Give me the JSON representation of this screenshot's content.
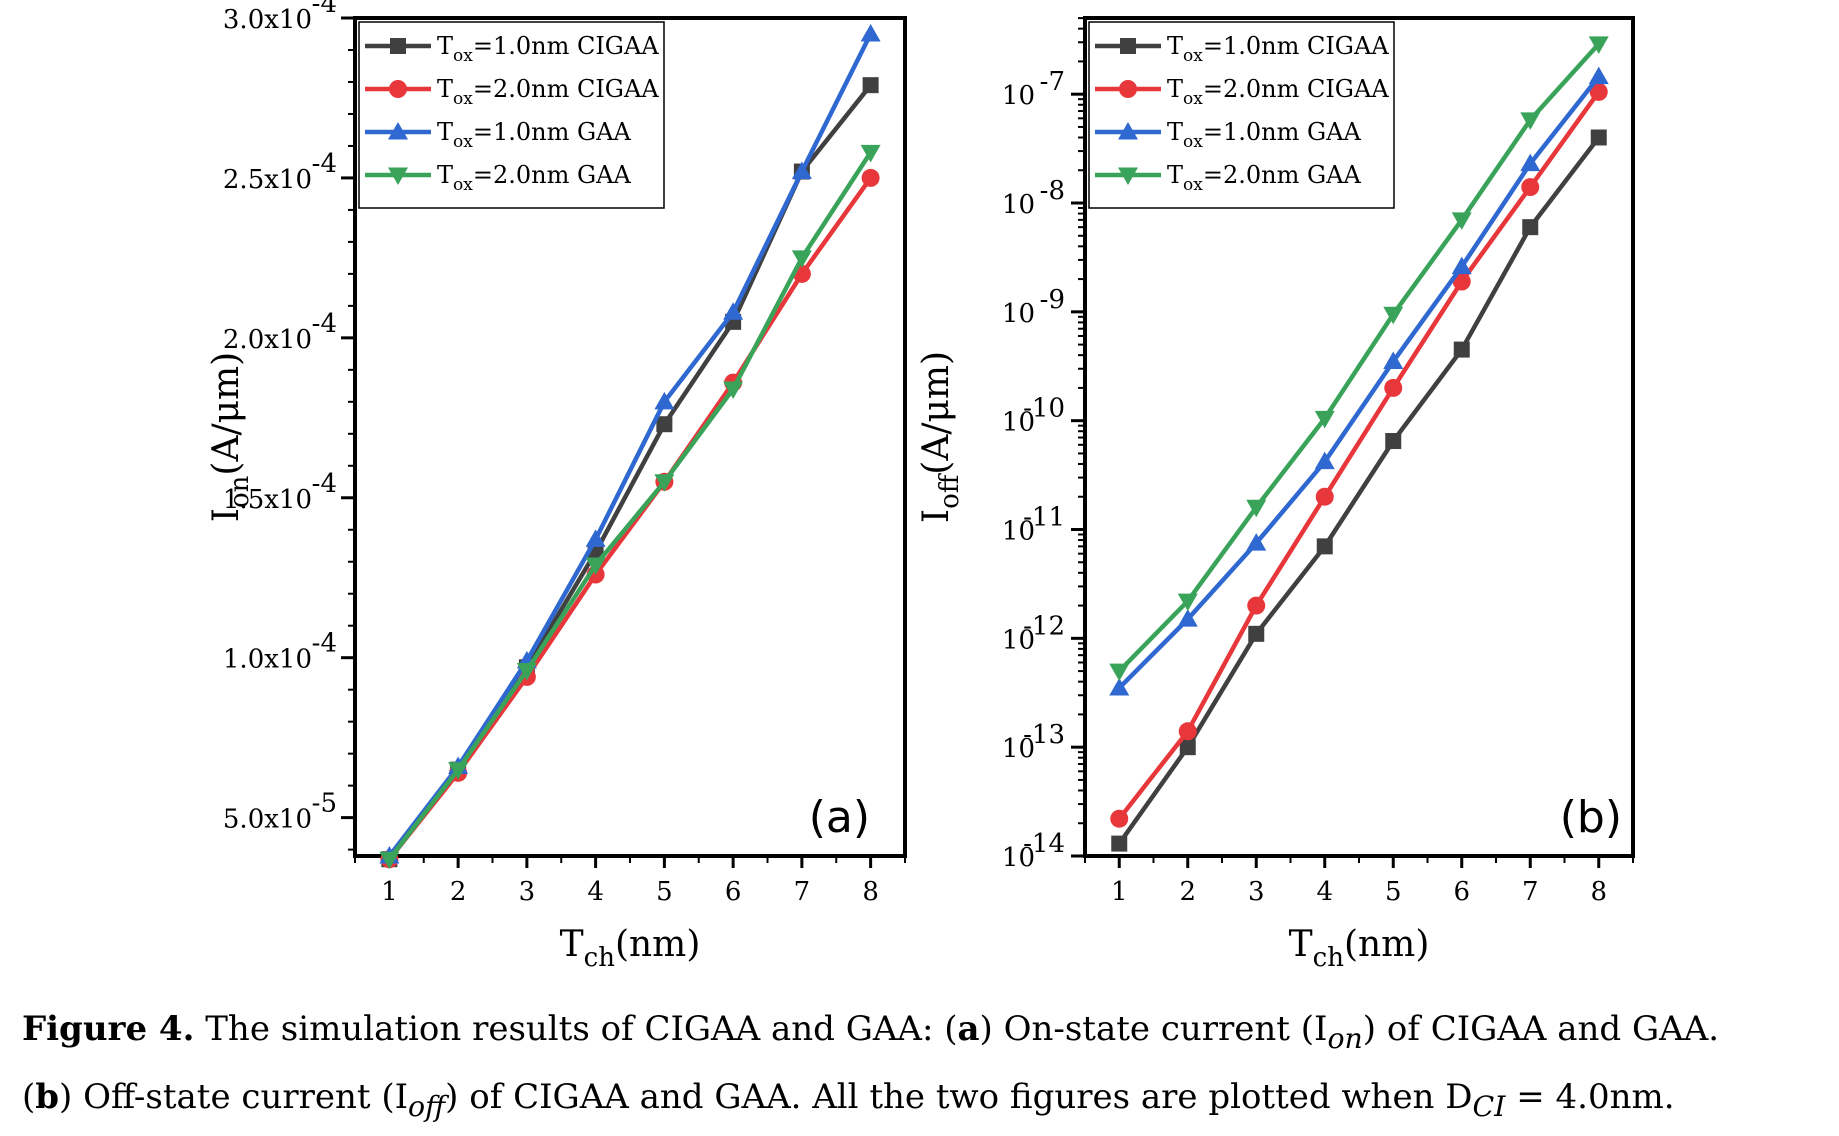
{
  "chart_data": [
    {
      "type": "line",
      "panel_label": "(a)",
      "xlabel": "T",
      "xlabel_sub": "ch",
      "xlabel_unit": "(nm)",
      "ylabel": "I",
      "ylabel_sub": "on",
      "ylabel_unit": "(A/μm)",
      "yscale": "linear",
      "x": [
        1,
        2,
        3,
        4,
        5,
        6,
        7,
        8
      ],
      "xlim": [
        0.5,
        8.5
      ],
      "ylim": [
        3.8e-05,
        0.0003
      ],
      "yticks": [
        5e-05,
        0.0001,
        0.00015,
        0.0002,
        0.00025,
        0.0003
      ],
      "ytick_labels": [
        {
          "mant": "5.0x10",
          "exp": "-5"
        },
        {
          "mant": "1.0x10",
          "exp": "-4"
        },
        {
          "mant": "1.5x10",
          "exp": "-4"
        },
        {
          "mant": "2.0x10",
          "exp": "-4"
        },
        {
          "mant": "2.5x10",
          "exp": "-4"
        },
        {
          "mant": "3.0x10",
          "exp": "-4"
        }
      ],
      "legend_position": "top-left",
      "series": [
        {
          "name": "Tox=1.0nm CIGAA",
          "leg_base": "T",
          "leg_sub": "ox",
          "leg_rest": "=1.0nm CIGAA",
          "color": "#404040",
          "marker": "square",
          "values": [
            3.7e-05,
            6.5e-05,
            9.7e-05,
            0.000133,
            0.000173,
            0.000205,
            0.000252,
            0.000279
          ]
        },
        {
          "name": "Tox=2.0nm CIGAA",
          "leg_base": "T",
          "leg_sub": "ox",
          "leg_rest": "=2.0nm CIGAA",
          "color": "#e8373b",
          "marker": "circle",
          "values": [
            3.7e-05,
            6.4e-05,
            9.4e-05,
            0.000126,
            0.000155,
            0.000186,
            0.00022,
            0.00025
          ]
        },
        {
          "name": "Tox=1.0nm GAA",
          "leg_base": "T",
          "leg_sub": "ox",
          "leg_rest": "=1.0nm GAA",
          "color": "#2e68d0",
          "marker": "triangle-up",
          "values": [
            3.8e-05,
            6.6e-05,
            9.9e-05,
            0.000137,
            0.00018,
            0.000208,
            0.000252,
            0.000295
          ]
        },
        {
          "name": "Tox=2.0nm GAA",
          "leg_base": "T",
          "leg_sub": "ox",
          "leg_rest": "=2.0nm GAA",
          "color": "#3aa35a",
          "marker": "triangle-down",
          "values": [
            3.7e-05,
            6.5e-05,
            9.6e-05,
            0.000129,
            0.000155,
            0.000184,
            0.000225,
            0.000258
          ]
        }
      ]
    },
    {
      "type": "line",
      "panel_label": "(b)",
      "xlabel": "T",
      "xlabel_sub": "ch",
      "xlabel_unit": "(nm)",
      "ylabel": "I",
      "ylabel_sub": "off",
      "ylabel_unit": "(A/μm)",
      "yscale": "log",
      "x": [
        1,
        2,
        3,
        4,
        5,
        6,
        7,
        8
      ],
      "xlim": [
        0.5,
        8.5
      ],
      "ylim_log10": [
        -14,
        -6.3
      ],
      "yticks_log10": [
        -14,
        -13,
        -12,
        -11,
        -10,
        -9,
        -8,
        -7
      ],
      "ytick_labels": [
        {
          "mant": "10",
          "exp": "-14"
        },
        {
          "mant": "10",
          "exp": "-13"
        },
        {
          "mant": "10",
          "exp": "-12"
        },
        {
          "mant": "10",
          "exp": "-11"
        },
        {
          "mant": "10",
          "exp": "-10"
        },
        {
          "mant": "10",
          "exp": "-9"
        },
        {
          "mant": "10",
          "exp": "-8"
        },
        {
          "mant": "10",
          "exp": "-7"
        }
      ],
      "legend_position": "top-left",
      "series": [
        {
          "name": "Tox=1.0nm CIGAA",
          "leg_base": "T",
          "leg_sub": "ox",
          "leg_rest": "=1.0nm CIGAA",
          "color": "#404040",
          "marker": "square",
          "values": [
            1.3e-14,
            1e-13,
            1.1e-12,
            7e-12,
            6.5e-11,
            4.5e-10,
            6e-09,
            4e-08
          ]
        },
        {
          "name": "Tox=2.0nm CIGAA",
          "leg_base": "T",
          "leg_sub": "ox",
          "leg_rest": "=2.0nm CIGAA",
          "color": "#e8373b",
          "marker": "circle",
          "values": [
            2.2e-14,
            1.4e-13,
            2e-12,
            2e-11,
            2e-10,
            1.9e-09,
            1.4e-08,
            1.05e-07
          ]
        },
        {
          "name": "Tox=1.0nm GAA",
          "leg_base": "T",
          "leg_sub": "ox",
          "leg_rest": "=1.0nm GAA",
          "color": "#2e68d0",
          "marker": "triangle-up",
          "values": [
            3.5e-13,
            1.5e-12,
            7.5e-12,
            4.2e-11,
            3.5e-10,
            2.6e-09,
            2.3e-08,
            1.45e-07
          ]
        },
        {
          "name": "Tox=2.0nm GAA",
          "leg_base": "T",
          "leg_sub": "ox",
          "leg_rest": "=2.0nm GAA",
          "color": "#3aa35a",
          "marker": "triangle-down",
          "values": [
            5e-13,
            2.2e-12,
            1.6e-11,
            1.05e-10,
            9.5e-10,
            7e-09,
            5.8e-08,
            2.9e-07
          ]
        }
      ]
    }
  ],
  "caption": {
    "line1": {
      "fig_label": "Figure 4.",
      "t1": " The simulation results of CIGAA and GAA: (",
      "a": "a",
      "t2": ") On-state current (I",
      "sub_on": "on",
      "t3": ") of CIGAA and GAA."
    },
    "line2": {
      "p1": "(",
      "b": "b",
      "t1": ") Off-state current (I",
      "sub_off": "off",
      "t2": ") of CIGAA and GAA. All the two figures are plotted when D",
      "sub_ci": "CI",
      "t3": " = 4.0nm."
    }
  }
}
